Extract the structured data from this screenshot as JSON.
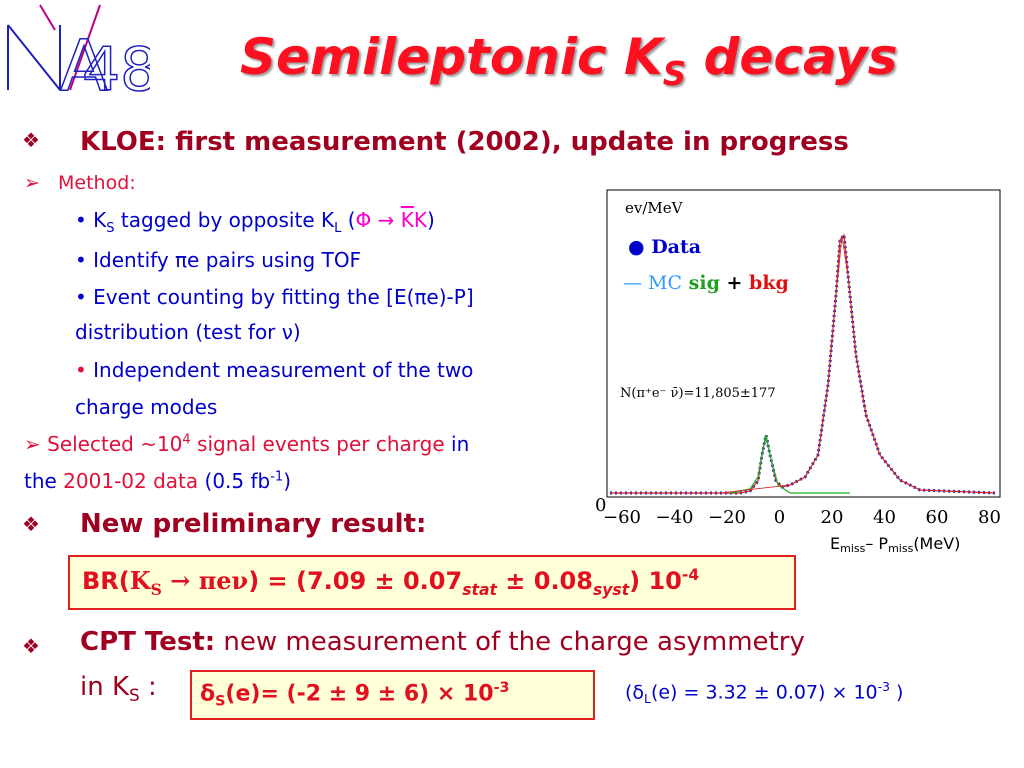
{
  "header": {
    "logo": {
      "n": "N",
      "a": "A",
      "num": "48"
    },
    "title": {
      "main": "Semileptonic K",
      "sub": "S",
      "end": " decays"
    }
  },
  "kloe": {
    "bullet": "❖",
    "text": "KLOE: first measurement (2002), update in progress",
    "method": {
      "arrow": "➢",
      "label": "Method:",
      "items": [
        {
          "a": "• K",
          "a_sub": "S",
          "b": " tagged by opposite K",
          "b_sub": "L",
          "c": " (",
          "d": "Φ → ",
          "e": "K",
          "f": "K",
          "g": ")"
        },
        {
          "text": "• Identify πe pairs using TOF"
        },
        {
          "text": "• Event counting by fitting the [E(πe)-P]",
          "cont": "distribution (test for ν)"
        },
        {
          "dot": "•",
          "text": " Independent measurement of the two",
          "cont": "charge modes"
        }
      ]
    },
    "selected": {
      "arrow": "➢",
      "a": " Selected ~10",
      "a_sup": "4",
      "b": " signal events per charge",
      "c": " in",
      "d": "the",
      "e": " 2001-02 data",
      "f": " (0.5 fb",
      "f_sup": "-1",
      "g": ")"
    }
  },
  "result": {
    "bullet": "❖",
    "text": "New preliminary result:",
    "br": {
      "a": "BR(",
      "k": "K",
      "k_sub": "S",
      "b": " → πeν",
      "c": ") = (7.09 ± 0.07",
      "c_sub": "stat",
      "d": " ± 0.08",
      "d_sub": "syst",
      "e": ") 10",
      "e_sup": "-4"
    }
  },
  "cpt": {
    "bullet": "❖",
    "label": "CPT Test:",
    "text": " new measurement of the  charge asymmetry",
    "cont": "in K",
    "cont_sub": "S",
    "cont_end": " :",
    "box": {
      "a": "δ",
      "a_sub": "S",
      "b": "(e)= (-2 ± 9 ± 6) × 10",
      "b_sup": "-3"
    },
    "side": {
      "a": "(δ",
      "a_sub": "L",
      "b": "(e) = 3.32 ± 0.07) × 10",
      "b_sup": "-3",
      "c": " )"
    }
  },
  "plot": {
    "ylabel": "ev/MeV",
    "legend_data": "●  Data",
    "legend_mc": "— MC",
    "legend_sig": " sig",
    "legend_plus": " +",
    "legend_bkg": " bkg",
    "annotation": "N(π⁺e⁻ ν̄)=11,805±177",
    "origin": "0",
    "xticks": [
      "−60",
      "−40",
      "−20",
      "0",
      "20",
      "40",
      "60",
      "80"
    ],
    "xlabel": {
      "a": "E",
      "a_sub": "miss",
      "b": "– P",
      "b_sub": "miss",
      "c": "(MeV)"
    }
  }
}
